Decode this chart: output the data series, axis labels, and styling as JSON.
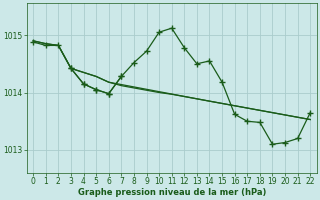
{
  "background_color": "#cce8e8",
  "grid_color": "#aacccc",
  "line_color": "#1a5c1a",
  "xlabel": "Graphe pression niveau de la mer (hPa)",
  "xlabel_color": "#1a5c1a",
  "tick_color": "#1a5c1a",
  "ylim": [
    1012.6,
    1015.55
  ],
  "yticks": [
    1013,
    1014,
    1015
  ],
  "xlim": [
    -0.5,
    22.5
  ],
  "xticks": [
    0,
    1,
    2,
    3,
    4,
    5,
    6,
    7,
    8,
    9,
    10,
    11,
    12,
    13,
    14,
    15,
    16,
    17,
    18,
    19,
    20,
    21,
    22
  ],
  "line1_x": [
    0,
    1,
    2,
    3,
    4,
    5,
    6,
    7,
    8,
    9,
    10,
    11,
    12,
    13,
    14,
    15,
    16,
    17,
    18,
    19,
    20,
    21,
    22
  ],
  "line1_y": [
    1014.9,
    1014.85,
    1014.82,
    1014.42,
    1014.35,
    1014.28,
    1014.18,
    1014.12,
    1014.08,
    1014.04,
    1014.0,
    1013.97,
    1013.93,
    1013.89,
    1013.85,
    1013.81,
    1013.77,
    1013.73,
    1013.69,
    1013.65,
    1013.61,
    1013.57,
    1013.53
  ],
  "line2_x": [
    0,
    1,
    2,
    3,
    4,
    5,
    6,
    14,
    15,
    16,
    17,
    18,
    19,
    20,
    21,
    22
  ],
  "line2_y": [
    1014.9,
    1014.85,
    1014.82,
    1014.42,
    1014.35,
    1014.28,
    1014.18,
    1013.85,
    1013.81,
    1013.77,
    1013.73,
    1013.69,
    1013.65,
    1013.61,
    1013.57,
    1013.53
  ],
  "line3_x": [
    0,
    1,
    2,
    3,
    4,
    5,
    6,
    7,
    8,
    9,
    10,
    11,
    12,
    13,
    14,
    15,
    16,
    17,
    18,
    19,
    20,
    21,
    22
  ],
  "line3_y": [
    1014.88,
    1014.82,
    1014.82,
    1014.42,
    1014.15,
    1014.05,
    1013.98,
    1014.28,
    1014.52,
    1014.72,
    1015.05,
    1015.12,
    1014.78,
    1014.5,
    1014.55,
    1014.18,
    1013.62,
    1013.5,
    1013.48,
    1013.1,
    1013.13,
    1013.2,
    1013.65
  ],
  "line4_x": [
    3,
    4,
    5,
    6,
    7
  ],
  "line4_y": [
    1014.42,
    1014.15,
    1014.05,
    1013.98,
    1014.28
  ]
}
